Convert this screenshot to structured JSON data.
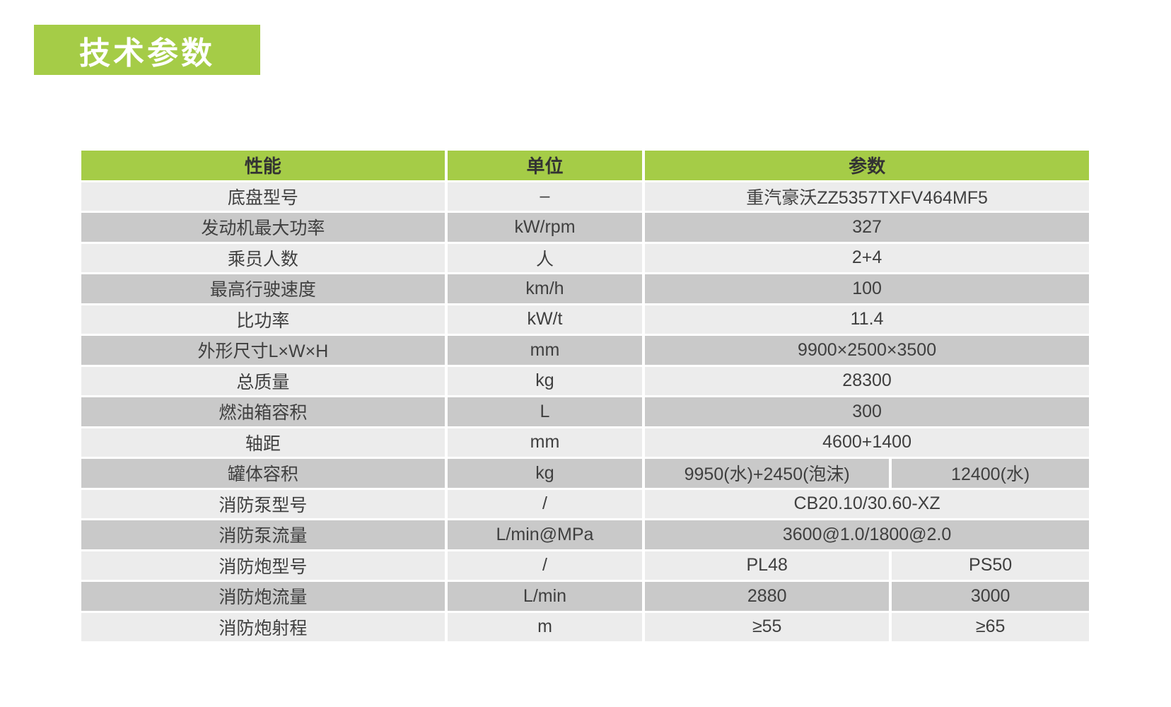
{
  "page": {
    "title": "技术参数"
  },
  "table": {
    "headers": {
      "performance": "性能",
      "unit": "单位",
      "parameter": "参数"
    },
    "rows": [
      {
        "name": "底盘型号",
        "unit": "–",
        "values": [
          "重汽豪沃ZZ5357TXFV464MF5"
        ]
      },
      {
        "name": "发动机最大功率",
        "unit": "kW/rpm",
        "values": [
          "327"
        ]
      },
      {
        "name": "乘员人数",
        "unit": "人",
        "values": [
          "2+4"
        ]
      },
      {
        "name": "最高行驶速度",
        "unit": "km/h",
        "values": [
          "100"
        ]
      },
      {
        "name": "比功率",
        "unit": "kW/t",
        "values": [
          "11.4"
        ]
      },
      {
        "name": "外形尺寸L×W×H",
        "unit": "mm",
        "values": [
          "9900×2500×3500"
        ]
      },
      {
        "name": "总质量",
        "unit": "kg",
        "values": [
          "28300"
        ]
      },
      {
        "name": "燃油箱容积",
        "unit": "L",
        "values": [
          "300"
        ]
      },
      {
        "name": "轴距",
        "unit": "mm",
        "values": [
          "4600+1400"
        ]
      },
      {
        "name": "罐体容积",
        "unit": "kg",
        "values": [
          "9950(水)+2450(泡沫)",
          "12400(水)"
        ]
      },
      {
        "name": "消防泵型号",
        "unit": "/",
        "values": [
          "CB20.10/30.60-XZ"
        ]
      },
      {
        "name": "消防泵流量",
        "unit": "L/min@MPa",
        "values": [
          "3600@1.0/1800@2.0"
        ]
      },
      {
        "name": "消防炮型号",
        "unit": "/",
        "values": [
          "PL48",
          "PS50"
        ]
      },
      {
        "name": "消防炮流量",
        "unit": "L/min",
        "values": [
          "2880",
          "3000"
        ]
      },
      {
        "name": "消防炮射程",
        "unit": "m",
        "values": [
          "≥55",
          "≥65"
        ]
      }
    ]
  },
  "colors": {
    "green": "#a5cc47",
    "row_light": "#ececec",
    "row_dark": "#c9c9c9",
    "text": "#3f3f3f",
    "header_text": "#333333"
  }
}
